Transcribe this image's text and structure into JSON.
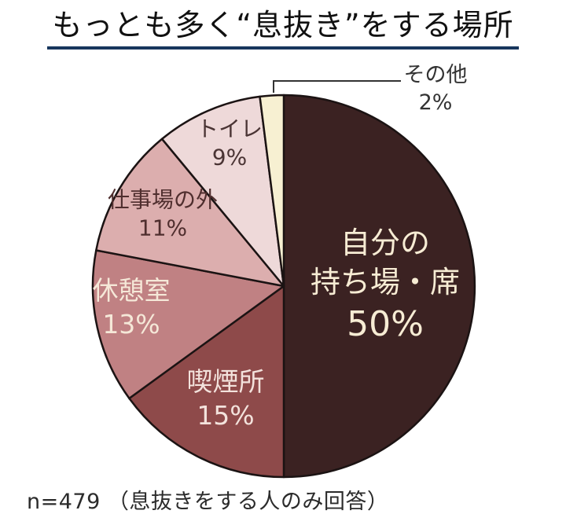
{
  "chart_data": {
    "type": "pie",
    "title": "もっとも多く“息抜き”をする場所",
    "note": "n=479 （息抜きをする人のみ回答）",
    "units": "%",
    "total": 100,
    "start_angle_deg": 0,
    "direction": "clockwise",
    "stroke_color": "#1b1313",
    "slices": [
      {
        "name": "自分の持ち場・席",
        "value": 50,
        "pct": "50%",
        "color": "#3b2222",
        "label_color": "#f7ecd4",
        "label_lines": [
          "自分の",
          "持ち場・席"
        ]
      },
      {
        "name": "喫煙所",
        "value": 15,
        "pct": "15%",
        "color": "#8e4a4a",
        "label_color": "#f3e2dc",
        "label_lines": [
          "喫煙所"
        ]
      },
      {
        "name": "休憩室",
        "value": 13,
        "pct": "13%",
        "color": "#c08183",
        "label_color": "#f5e8d8",
        "label_lines": [
          "休憩室"
        ]
      },
      {
        "name": "仕事場の外",
        "value": 11,
        "pct": "11%",
        "color": "#dcaeae",
        "label_color": "#4f2e2e",
        "label_lines": [
          "仕事場の外"
        ]
      },
      {
        "name": "トイレ",
        "value": 9,
        "pct": "9%",
        "color": "#eed9d9",
        "label_color": "#4a3434",
        "label_lines": [
          "トイレ"
        ]
      },
      {
        "name": "その他",
        "value": 2,
        "pct": "2%",
        "color": "#f7f0d2",
        "label_color": "#333333",
        "label_lines": [
          "その他"
        ]
      }
    ]
  },
  "colors": {
    "background": "#ffffff",
    "title_text": "#111111",
    "title_underline": "#17365d",
    "note_text": "#2b2b2b",
    "leader_line": "#333333"
  }
}
